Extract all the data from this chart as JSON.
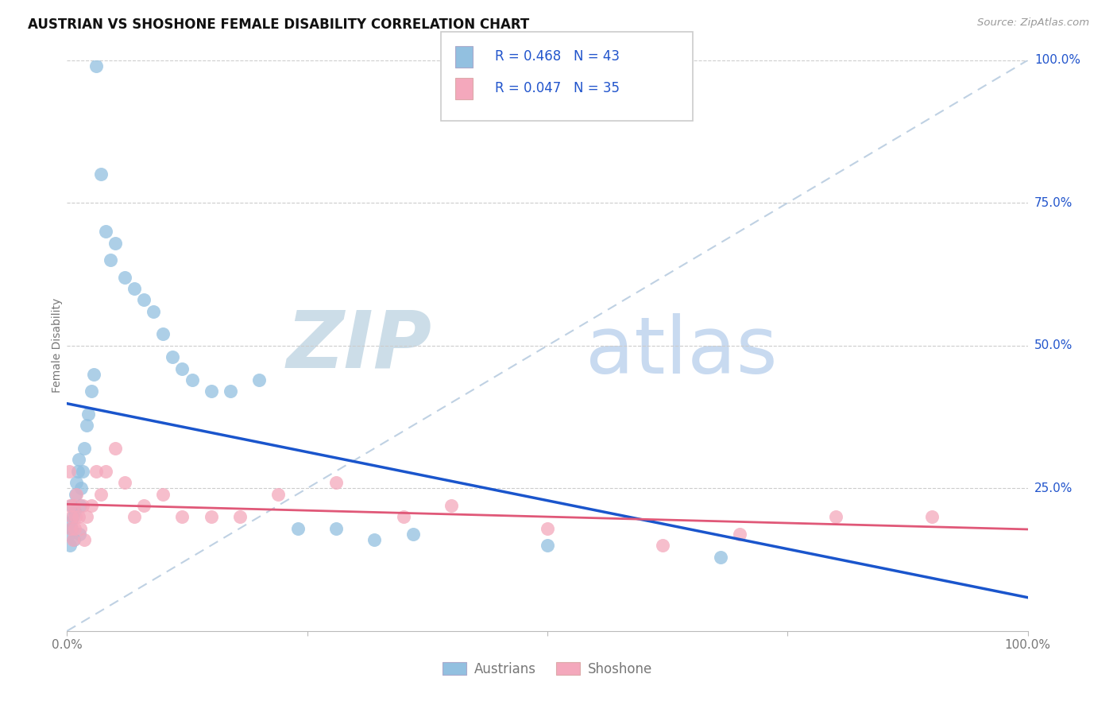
{
  "title": "AUSTRIAN VS SHOSHONE FEMALE DISABILITY CORRELATION CHART",
  "source": "Source: ZipAtlas.com",
  "ylabel": "Female Disability",
  "legend_blue_R": "R = 0.468",
  "legend_blue_N": "N = 43",
  "legend_pink_R": "R = 0.047",
  "legend_pink_N": "N = 35",
  "legend_label_blue": "Austrians",
  "legend_label_pink": "Shoshone",
  "blue_color": "#92c0e0",
  "pink_color": "#f4a8bc",
  "blue_line_color": "#1a55cc",
  "pink_line_color": "#e05878",
  "diag_line_color": "#b8cce0",
  "text_color_blue": "#2255cc",
  "watermark_zip_color": "#ccdde8",
  "watermark_atlas_color": "#c8daf0",
  "grid_color": "#cccccc",
  "title_color": "#111111",
  "source_color": "#999999",
  "tick_color": "#777777",
  "blue_x": [
    0.2,
    0.3,
    0.4,
    0.5,
    0.5,
    0.6,
    0.7,
    0.8,
    0.9,
    1.0,
    1.1,
    1.2,
    1.3,
    1.4,
    1.5,
    1.6,
    1.8,
    2.0,
    2.2,
    2.5,
    2.8,
    3.0,
    3.5,
    4.0,
    4.5,
    5.0,
    6.0,
    7.0,
    8.0,
    9.0,
    10.0,
    11.0,
    12.0,
    13.0,
    15.0,
    17.0,
    20.0,
    24.0,
    28.0,
    32.0,
    36.0,
    50.0,
    68.0
  ],
  "blue_y": [
    17,
    15,
    19,
    22,
    18,
    20,
    16,
    21,
    24,
    26,
    28,
    30,
    17,
    22,
    25,
    28,
    32,
    36,
    38,
    42,
    45,
    99,
    80,
    70,
    65,
    68,
    62,
    60,
    58,
    56,
    52,
    48,
    46,
    44,
    42,
    42,
    44,
    18,
    18,
    16,
    17,
    15,
    13
  ],
  "pink_x": [
    0.2,
    0.3,
    0.4,
    0.5,
    0.6,
    0.7,
    0.8,
    0.9,
    1.0,
    1.2,
    1.4,
    1.6,
    1.8,
    2.0,
    2.5,
    3.0,
    3.5,
    4.0,
    5.0,
    6.0,
    7.0,
    8.0,
    10.0,
    12.0,
    15.0,
    18.0,
    22.0,
    28.0,
    35.0,
    40.0,
    50.0,
    62.0,
    70.0,
    80.0,
    90.0
  ],
  "pink_y": [
    28,
    22,
    18,
    20,
    16,
    22,
    18,
    20,
    24,
    20,
    18,
    22,
    16,
    20,
    22,
    28,
    24,
    28,
    32,
    26,
    20,
    22,
    24,
    20,
    20,
    20,
    24,
    26,
    20,
    22,
    18,
    15,
    17,
    20,
    20
  ],
  "xlim": [
    0,
    100
  ],
  "ylim": [
    0,
    100
  ],
  "figsize": [
    14.06,
    8.92
  ],
  "dpi": 100
}
